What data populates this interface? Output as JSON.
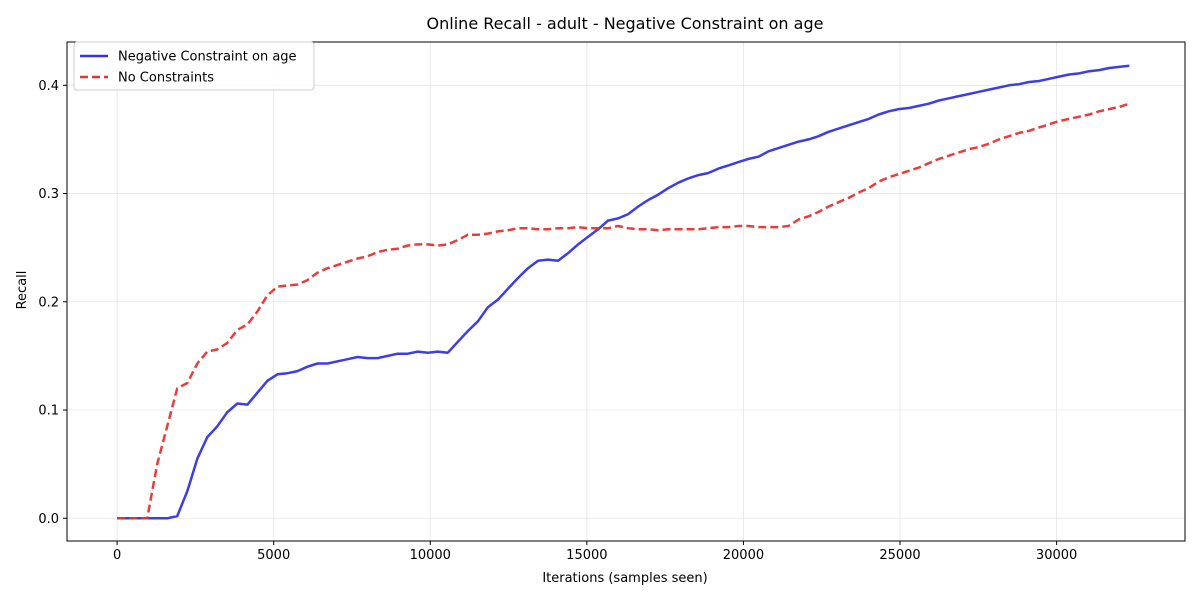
{
  "chart_data": {
    "type": "line",
    "title": "Online Recall - adult - Negative Constraint on age",
    "xlabel": "Iterations (samples seen)",
    "ylabel": "Recall",
    "xlim": [
      -1600,
      34100
    ],
    "ylim": [
      -0.021,
      0.44
    ],
    "xticks": [
      0,
      5000,
      10000,
      15000,
      20000,
      25000,
      30000
    ],
    "yticks": [
      0.0,
      0.1,
      0.2,
      0.3,
      0.4
    ],
    "xtick_labels": [
      "0",
      "5000",
      "10000",
      "15000",
      "20000",
      "25000",
      "30000"
    ],
    "ytick_labels": [
      "0.0",
      "0.1",
      "0.2",
      "0.3",
      "0.4"
    ],
    "grid": true,
    "legend_position": "top-left",
    "series": [
      {
        "name": "Negative Constraint on age",
        "color": "#3333e6",
        "style": "solid",
        "x": [
          0,
          320,
          640,
          960,
          1280,
          1600,
          1920,
          2240,
          2560,
          2880,
          3200,
          3520,
          3840,
          4160,
          4480,
          4800,
          5120,
          5440,
          5760,
          6080,
          6400,
          6720,
          7040,
          7360,
          7680,
          8000,
          8320,
          8640,
          8960,
          9280,
          9600,
          9920,
          10240,
          10560,
          10880,
          11200,
          11520,
          11840,
          12160,
          12480,
          12800,
          13120,
          13440,
          13760,
          14080,
          14400,
          14720,
          15040,
          15360,
          15680,
          16000,
          16320,
          16640,
          16960,
          17280,
          17600,
          17920,
          18240,
          18560,
          18880,
          19200,
          19520,
          19840,
          20160,
          20480,
          20800,
          21120,
          21440,
          21760,
          22080,
          22400,
          22720,
          23040,
          23360,
          23680,
          24000,
          24320,
          24640,
          24960,
          25280,
          25600,
          25920,
          26240,
          26560,
          26880,
          27200,
          27520,
          27840,
          28160,
          28480,
          28800,
          29120,
          29440,
          29760,
          30080,
          30400,
          30720,
          31040,
          31360,
          31680,
          32000,
          32320
        ],
        "y": [
          0.0,
          0.0,
          0.0,
          0.0,
          0.0,
          0.0,
          0.002,
          0.025,
          0.055,
          0.075,
          0.085,
          0.098,
          0.106,
          0.105,
          0.116,
          0.127,
          0.133,
          0.134,
          0.136,
          0.14,
          0.143,
          0.143,
          0.145,
          0.147,
          0.149,
          0.148,
          0.148,
          0.15,
          0.152,
          0.152,
          0.154,
          0.153,
          0.154,
          0.153,
          0.163,
          0.173,
          0.182,
          0.195,
          0.202,
          0.212,
          0.222,
          0.231,
          0.238,
          0.239,
          0.238,
          0.245,
          0.253,
          0.26,
          0.267,
          0.275,
          0.277,
          0.281,
          0.288,
          0.294,
          0.299,
          0.305,
          0.31,
          0.314,
          0.317,
          0.319,
          0.323,
          0.326,
          0.329,
          0.332,
          0.334,
          0.339,
          0.342,
          0.345,
          0.348,
          0.35,
          0.353,
          0.357,
          0.36,
          0.363,
          0.366,
          0.369,
          0.373,
          0.376,
          0.378,
          0.379,
          0.381,
          0.383,
          0.386,
          0.388,
          0.39,
          0.392,
          0.394,
          0.396,
          0.398,
          0.4,
          0.401,
          0.403,
          0.404,
          0.406,
          0.408,
          0.41,
          0.411,
          0.413,
          0.414,
          0.416,
          0.417,
          0.418
        ]
      },
      {
        "name": "No Constraints",
        "color": "#e63333",
        "style": "dashed",
        "x": [
          0,
          320,
          640,
          960,
          1280,
          1600,
          1920,
          2240,
          2560,
          2880,
          3200,
          3520,
          3840,
          4160,
          4480,
          4800,
          5120,
          5440,
          5760,
          6080,
          6400,
          6720,
          7040,
          7360,
          7680,
          8000,
          8320,
          8640,
          8960,
          9280,
          9600,
          9920,
          10240,
          10560,
          10880,
          11200,
          11520,
          11840,
          12160,
          12480,
          12800,
          13120,
          13440,
          13760,
          14080,
          14400,
          14720,
          15040,
          15360,
          15680,
          16000,
          16320,
          16640,
          16960,
          17280,
          17600,
          17920,
          18240,
          18560,
          18880,
          19200,
          19520,
          19840,
          20160,
          20480,
          20800,
          21120,
          21440,
          21760,
          22080,
          22400,
          22720,
          23040,
          23360,
          23680,
          24000,
          24320,
          24640,
          24960,
          25280,
          25600,
          25920,
          26240,
          26560,
          26880,
          27200,
          27520,
          27840,
          28160,
          28480,
          28800,
          29120,
          29440,
          29760,
          30080,
          30400,
          30720,
          31040,
          31360,
          31680,
          32000,
          32320
        ],
        "y": [
          0.0,
          0.0,
          0.0,
          0.0,
          0.05,
          0.085,
          0.12,
          0.125,
          0.143,
          0.154,
          0.156,
          0.162,
          0.174,
          0.179,
          0.191,
          0.206,
          0.214,
          0.215,
          0.216,
          0.22,
          0.227,
          0.231,
          0.234,
          0.237,
          0.24,
          0.242,
          0.246,
          0.248,
          0.249,
          0.252,
          0.253,
          0.253,
          0.252,
          0.253,
          0.257,
          0.262,
          0.262,
          0.263,
          0.265,
          0.266,
          0.268,
          0.268,
          0.267,
          0.267,
          0.268,
          0.268,
          0.269,
          0.268,
          0.268,
          0.268,
          0.27,
          0.268,
          0.267,
          0.267,
          0.266,
          0.267,
          0.267,
          0.267,
          0.267,
          0.268,
          0.269,
          0.269,
          0.27,
          0.27,
          0.269,
          0.269,
          0.269,
          0.27,
          0.276,
          0.279,
          0.283,
          0.288,
          0.292,
          0.296,
          0.301,
          0.305,
          0.311,
          0.315,
          0.318,
          0.321,
          0.324,
          0.328,
          0.332,
          0.335,
          0.338,
          0.341,
          0.343,
          0.346,
          0.35,
          0.353,
          0.356,
          0.358,
          0.361,
          0.364,
          0.367,
          0.369,
          0.371,
          0.373,
          0.376,
          0.378,
          0.38,
          0.383
        ]
      }
    ]
  }
}
